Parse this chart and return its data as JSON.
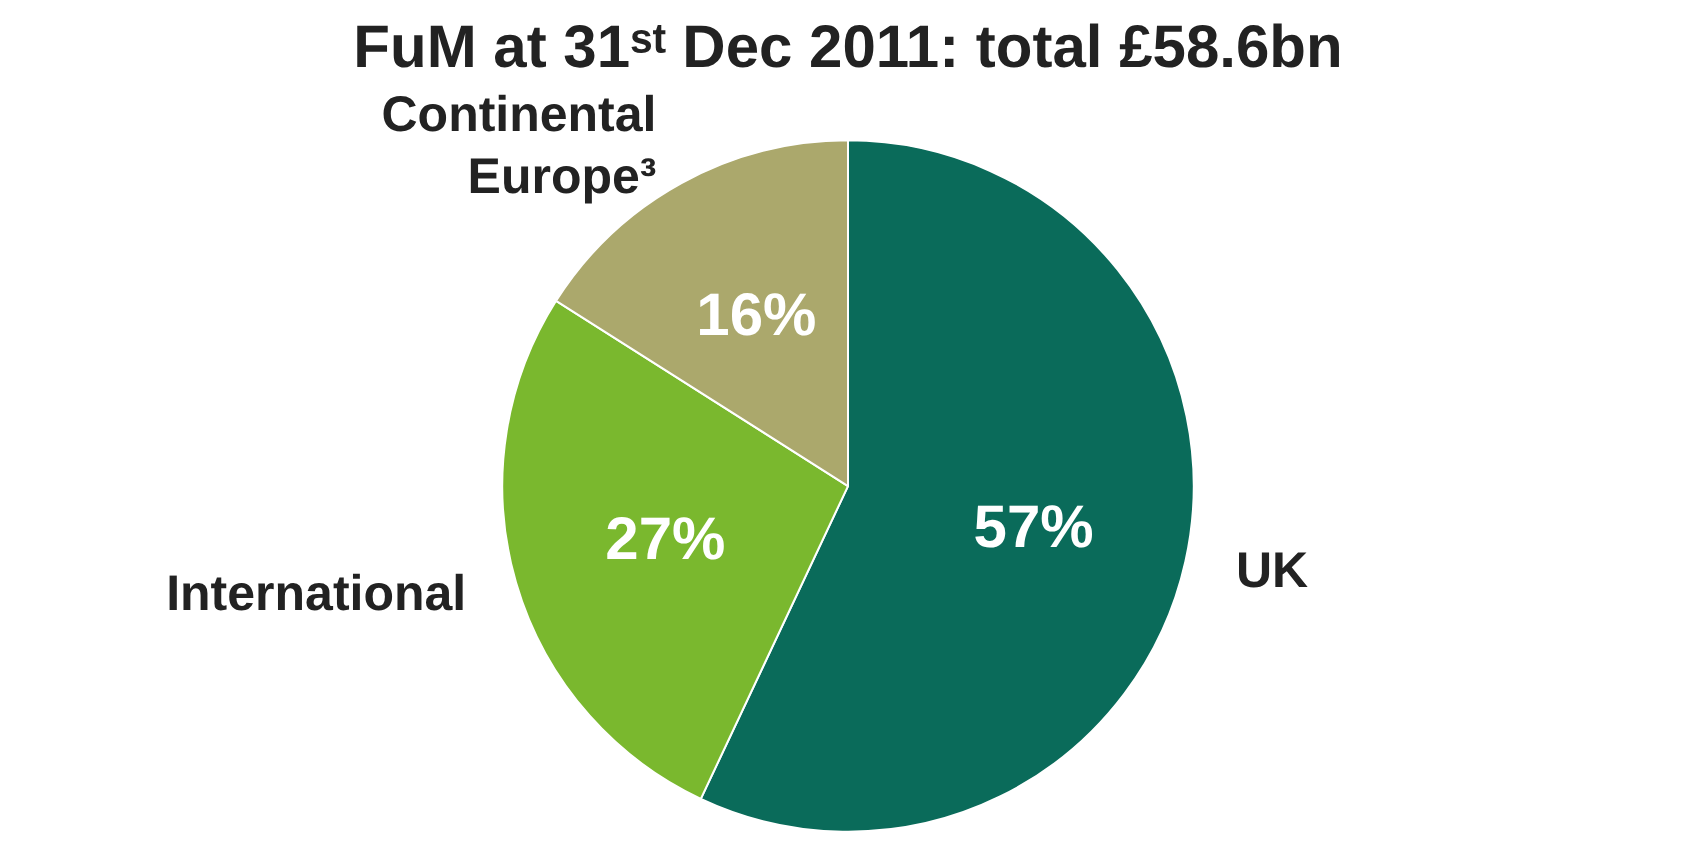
{
  "chart_data": {
    "type": "pie",
    "title": "FuM at 31ˢᵗ Dec 2011: total £58.6bn",
    "categories": [
      "UK",
      "International",
      "Continental Europe³"
    ],
    "values": [
      57,
      27,
      16
    ],
    "colors": [
      "#0a6b5a",
      "#7ab82e",
      "#aba86c"
    ],
    "value_labels": [
      "57%",
      "27%",
      "16%"
    ]
  }
}
